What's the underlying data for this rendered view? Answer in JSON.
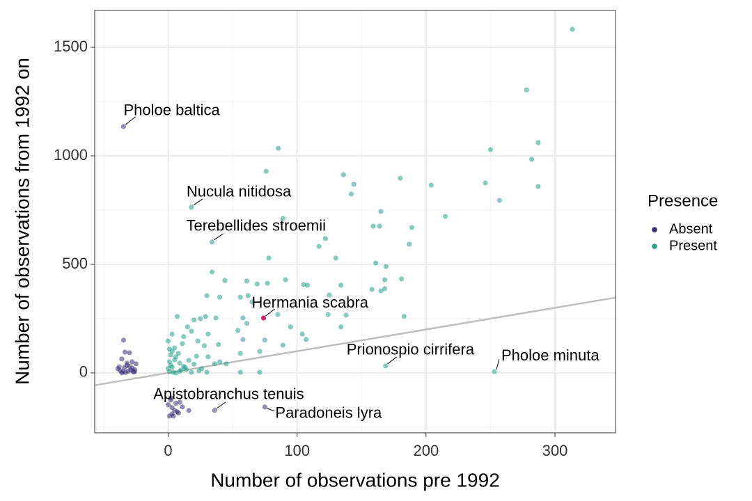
{
  "chart_data": {
    "type": "scatter",
    "xlabel": "Number of observations pre 1992",
    "ylabel": "Number of observations from 1992 on",
    "xlim": [
      -57,
      347
    ],
    "ylim": [
      -276,
      1670
    ],
    "xticks": [
      0,
      100,
      200,
      300
    ],
    "yticks": [
      0,
      500,
      1000,
      1500
    ],
    "x_minor_grid": [
      -50,
      50,
      150,
      250
    ],
    "y_minor_grid": [
      -250,
      250,
      750,
      1250
    ],
    "grid": true,
    "legend_title": "Presence",
    "legend_position": "right",
    "series": [
      {
        "name": "Absent",
        "color": "#3b2d74",
        "x": [
          -34.6,
          -33.5,
          -30,
          -36,
          -28,
          -32,
          -25,
          -39,
          -37,
          -35,
          -33,
          -31,
          -29,
          -27,
          -26,
          -38,
          -34,
          -30,
          -28,
          -36,
          -32,
          -26,
          2,
          5,
          3,
          9,
          11,
          16,
          0,
          7,
          1,
          4,
          2,
          6,
          3,
          8
        ],
        "y": [
          151,
          96,
          93,
          64,
          51,
          45,
          42,
          19,
          10,
          5,
          2,
          8,
          12,
          4,
          15,
          28,
          24,
          30,
          22,
          0,
          35,
          6,
          -125,
          -173,
          -189,
          -135,
          -157,
          -173,
          -147,
          -179,
          -199,
          -199,
          -115,
          -140,
          -160,
          -185
        ]
      },
      {
        "name": "Present",
        "color": "#22a088",
        "x": [
          313.5,
          278,
          85.4,
          76,
          250,
          287,
          282,
          136,
          144,
          142,
          180,
          204,
          246,
          257,
          287,
          215,
          165,
          164,
          159,
          189,
          89,
          122,
          117,
          130,
          187,
          161,
          169,
          78,
          34,
          44,
          61,
          91,
          30,
          40,
          69,
          77,
          105,
          108,
          134,
          181,
          168,
          168,
          158,
          165,
          125,
          62,
          65,
          56,
          138,
          124,
          183,
          85,
          58,
          134,
          95,
          61,
          54,
          104,
          107,
          89,
          75,
          58,
          71,
          56,
          31,
          39,
          28,
          23,
          18,
          20,
          25,
          29,
          37,
          15,
          12,
          7,
          11,
          5,
          3,
          0,
          31,
          45,
          40,
          36,
          22,
          16,
          9,
          3,
          1,
          4,
          10,
          13,
          18,
          24,
          30,
          1,
          2,
          6,
          56,
          71,
          0,
          2,
          5,
          8,
          12,
          14,
          6,
          3,
          1,
          9,
          20,
          26
        ],
        "y": [
          1583,
          1304,
          1035,
          929,
          1029,
          1061,
          984,
          913,
          869,
          824,
          897,
          865,
          875,
          795,
          859,
          721,
          744,
          676,
          676,
          670,
          712,
          619,
          583,
          529,
          593,
          506,
          490,
          529,
          465,
          426,
          423,
          429,
          356,
          349,
          410,
          413,
          407,
          404,
          404,
          433,
          429,
          388,
          385,
          378,
          359,
          356,
          327,
          349,
          266,
          269,
          260,
          269,
          253,
          212,
          212,
          228,
          196,
          179,
          154,
          128,
          151,
          154,
          99,
          90,
          179,
          131,
          125,
          147,
          192,
          244,
          250,
          260,
          253,
          212,
          167,
          260,
          135,
          115,
          179,
          147,
          74,
          42,
          51,
          42,
          77,
          58,
          45,
          26,
          6,
          3,
          13,
          26,
          3,
          10,
          3,
          51,
          83,
          74,
          3,
          3,
          20,
          35,
          60,
          90,
          30,
          15,
          0,
          100,
          110,
          8,
          40,
          20
        ]
      }
    ],
    "annotations": [
      {
        "text": "Pholoe baltica",
        "x": -34.6,
        "y": 1135,
        "color": "#3b2d74"
      },
      {
        "text": "Nucula nitidosa",
        "x": 18,
        "y": 763,
        "color": "#22a088"
      },
      {
        "text": "Terebellides stroemii",
        "x": 34,
        "y": 603,
        "color": "#22a088"
      },
      {
        "text": "Hermania scabra",
        "x": 74,
        "y": 253,
        "color": "#d6246e"
      },
      {
        "text": "Prionospio cirrifera",
        "x": 168.6,
        "y": 32,
        "color": "#22a088"
      },
      {
        "text": "Pholoe minuta",
        "x": 253,
        "y": 6,
        "color": "#22a088"
      },
      {
        "text": "Apistobranchus tenuis",
        "x": 36,
        "y": -173,
        "color": "#3b2d74"
      },
      {
        "text": "Paradoneis lyra",
        "x": 75,
        "y": -157,
        "color": "#3b2d74"
      }
    ],
    "reference_line": {
      "x": [
        -57,
        347
      ],
      "y": [
        -57,
        347
      ],
      "color": "#bdbdbd"
    }
  }
}
